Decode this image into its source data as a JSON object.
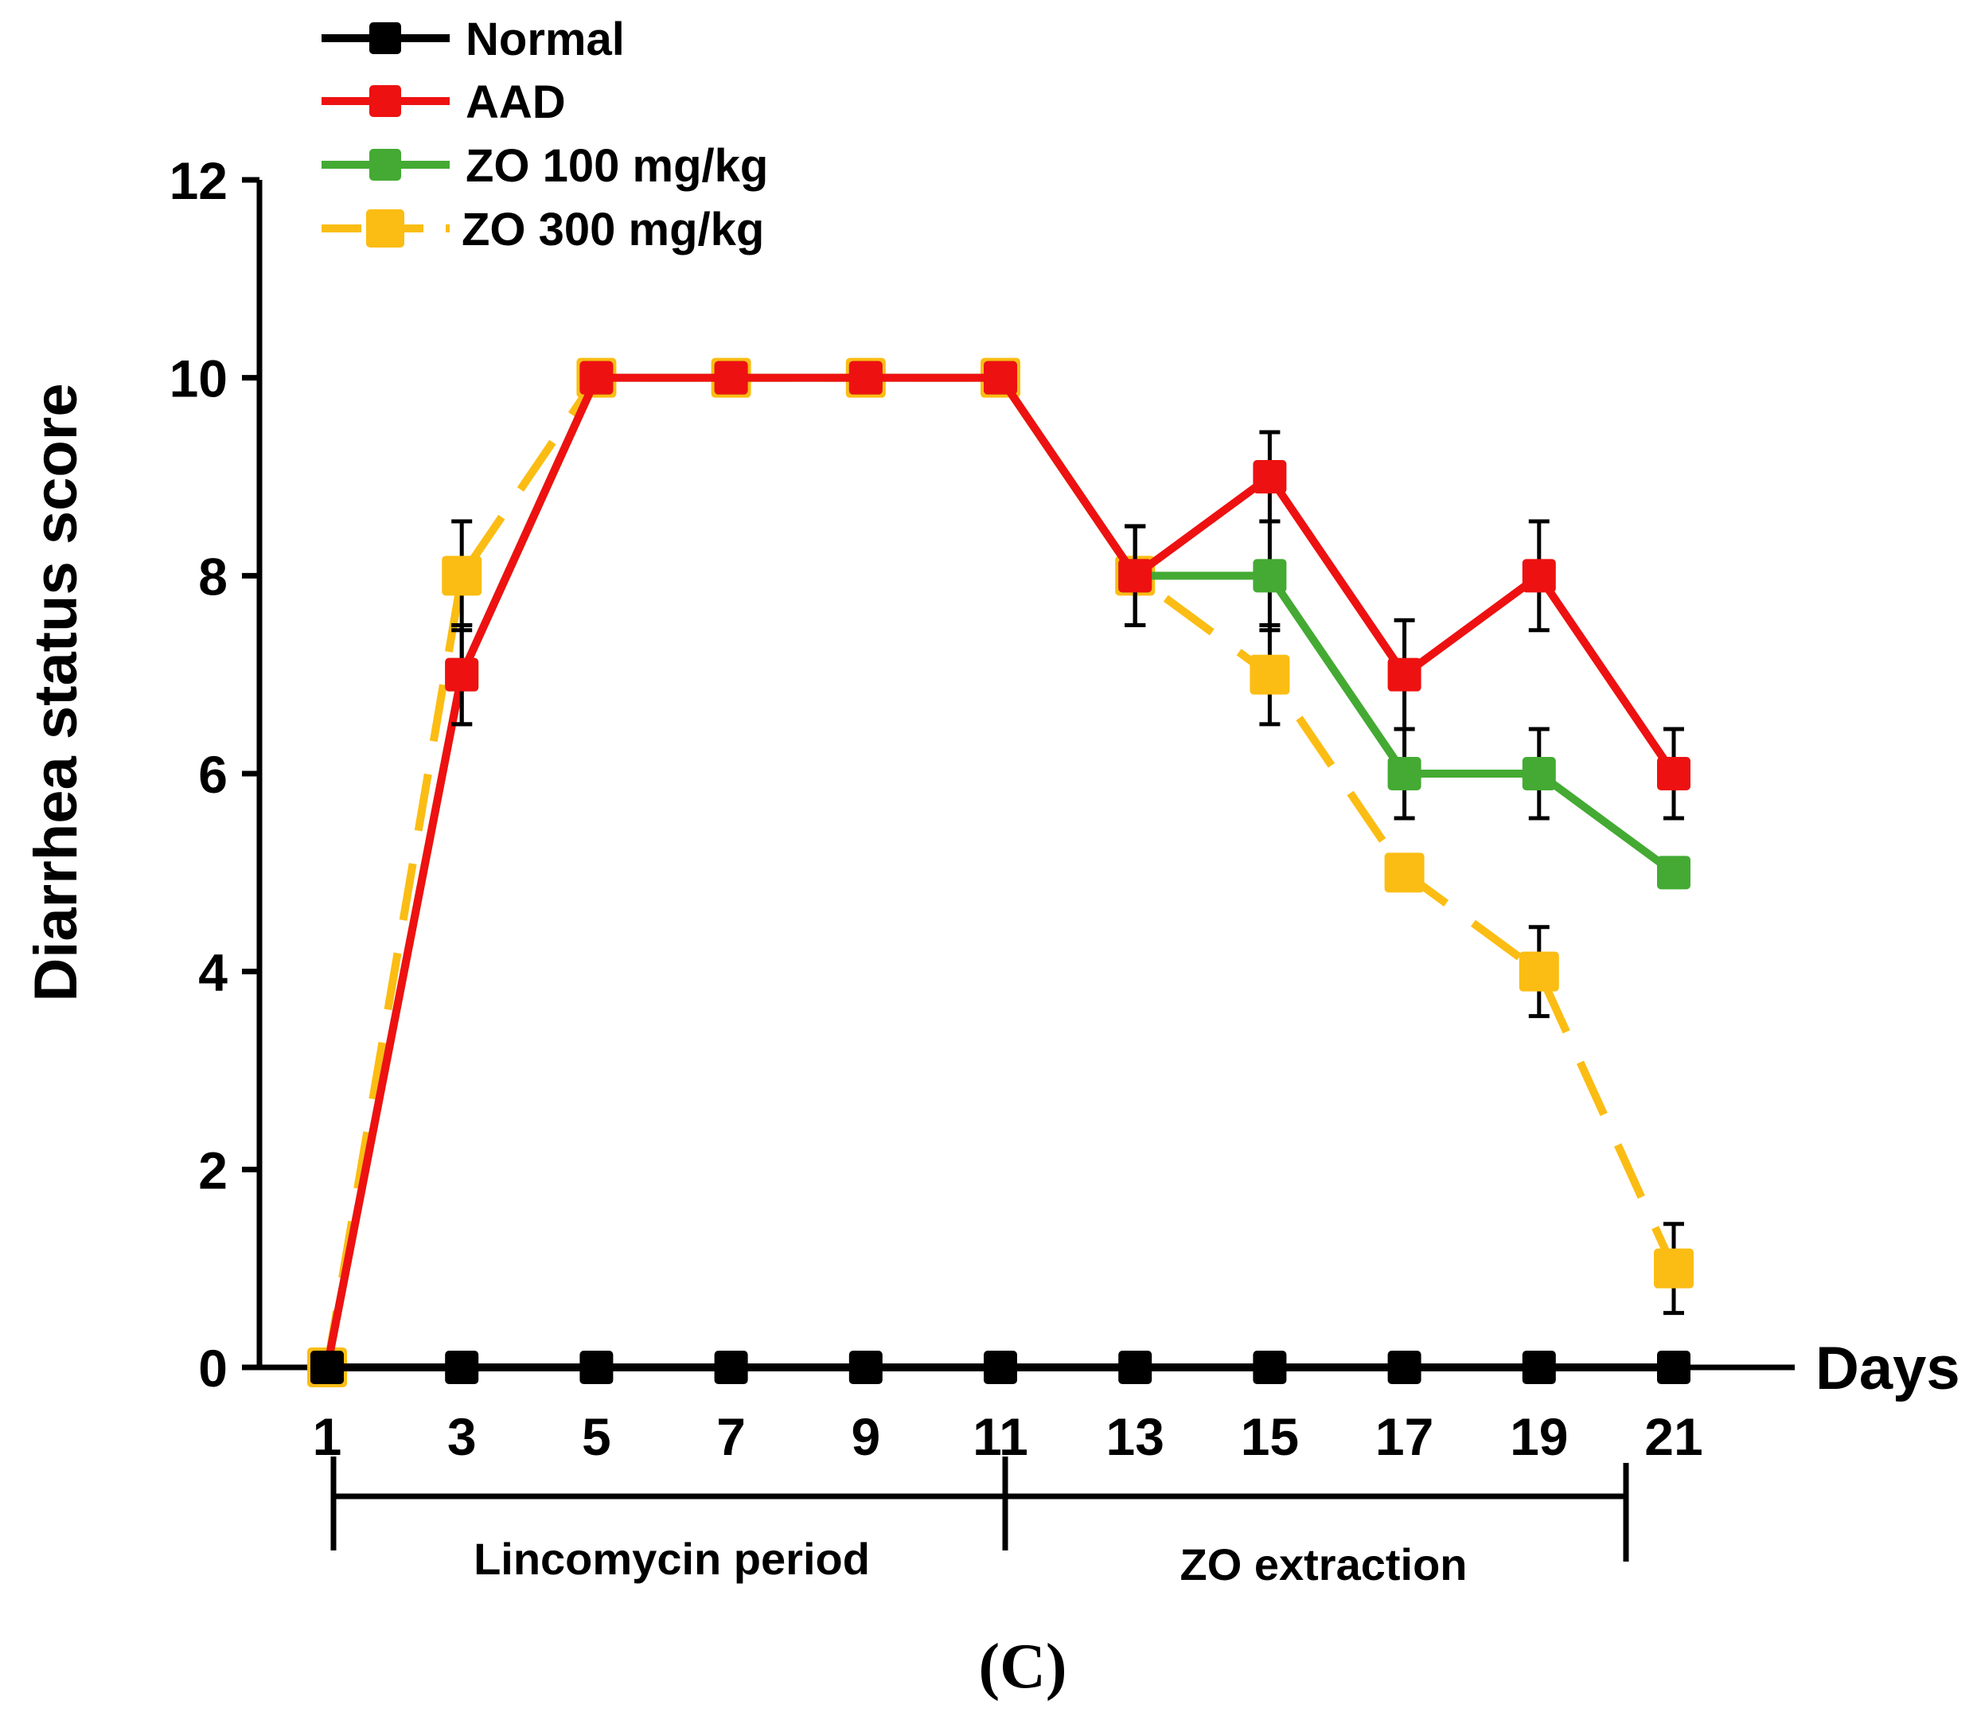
{
  "chart_data": {
    "type": "line",
    "title": "",
    "xlabel": "Days",
    "ylabel": "Diarrhea status score",
    "panel_label": "(C)",
    "x": [
      1,
      3,
      5,
      7,
      9,
      11,
      13,
      15,
      17,
      19,
      21
    ],
    "x_ticks": [
      "1",
      "3",
      "5",
      "7",
      "9",
      "11",
      "13",
      "15",
      "17",
      "19",
      "21"
    ],
    "ylim": [
      0,
      12
    ],
    "y_ticks": [
      0,
      2,
      4,
      6,
      8,
      10,
      12
    ],
    "y_tick_labels": [
      "0",
      "2",
      "4",
      "6",
      "8",
      "10",
      "12"
    ],
    "legend_position": "top-left",
    "series": [
      {
        "name": "Normal",
        "color": "#000000",
        "dashed": false,
        "values": [
          0,
          0,
          0,
          0,
          0,
          0,
          0,
          0,
          0,
          0,
          0
        ],
        "errors": [
          0,
          0,
          0,
          0,
          0,
          0,
          0,
          0,
          0,
          0,
          0
        ]
      },
      {
        "name": "AAD",
        "color": "#ee1111",
        "dashed": false,
        "values": [
          0,
          7,
          10,
          10,
          10,
          10,
          8,
          9,
          7,
          8,
          6
        ],
        "errors": [
          0,
          0.5,
          0,
          0,
          0,
          0,
          0.5,
          0.45,
          0.55,
          0.55,
          0.45
        ]
      },
      {
        "name": "ZO 100 mg/kg",
        "color": "#44aa33",
        "dashed": false,
        "values": [
          0,
          7,
          10,
          10,
          10,
          10,
          8,
          8,
          6,
          6,
          5
        ],
        "errors": [
          0,
          0.5,
          0,
          0,
          0,
          0,
          0.5,
          0.55,
          0.45,
          0.45,
          0
        ]
      },
      {
        "name": "ZO 300 mg/kg",
        "color": "#fbbd14",
        "dashed": true,
        "values": [
          0,
          8,
          10,
          10,
          10,
          10,
          8,
          7,
          5,
          4,
          1
        ],
        "errors": [
          0,
          0.55,
          0,
          0,
          0,
          0,
          0.5,
          0.5,
          0,
          0.45,
          0.45
        ]
      }
    ],
    "annotations": [
      {
        "label": "Lincomycin period",
        "from_day": 1,
        "to_day": 11
      },
      {
        "label": "ZO extraction",
        "from_day": 11,
        "to_day": 20
      }
    ]
  }
}
